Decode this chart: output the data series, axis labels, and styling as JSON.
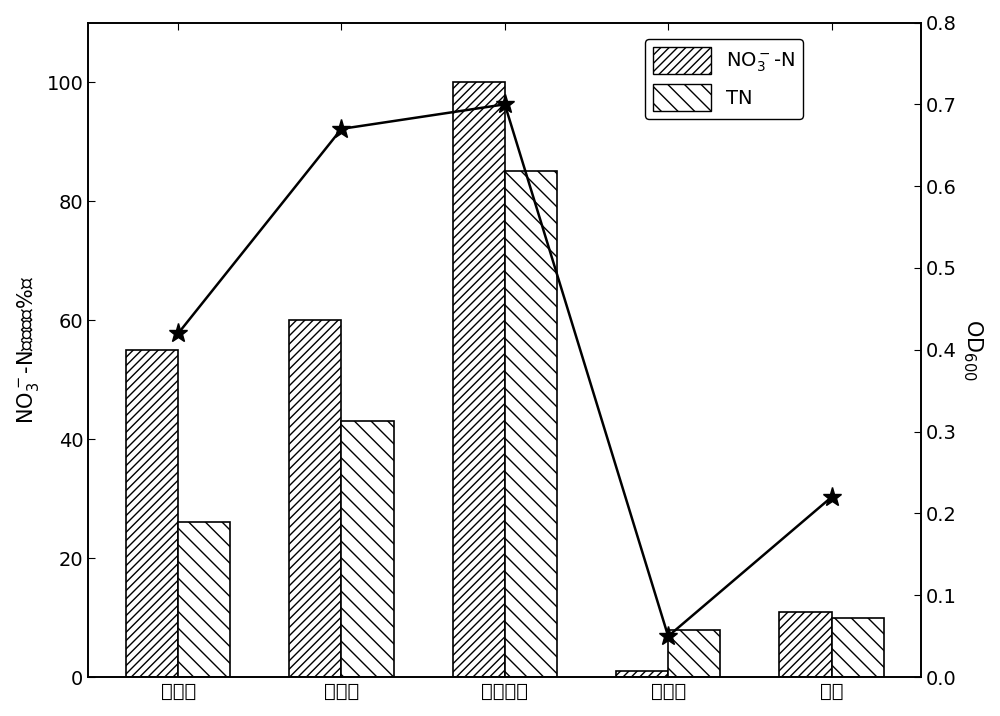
{
  "categories": [
    "乙酸钓",
    "葡葡糖",
    "丁二酸钓",
    "草酸钓",
    "乙醇"
  ],
  "no3_n_removal": [
    55,
    60,
    100,
    1,
    11
  ],
  "tn_removal": [
    26,
    43,
    85,
    8,
    10
  ],
  "od600": [
    0.42,
    0.67,
    0.7,
    0.05,
    0.22
  ],
  "ylim_left": [
    0,
    110
  ],
  "ylim_right": [
    0,
    0.8
  ],
  "bar_width": 0.32,
  "bar_color": "white",
  "bar_edgecolor": "black",
  "line_color": "black",
  "star_markersize": 14,
  "background_color": "white",
  "tick_fontsize": 14,
  "label_fontsize": 15,
  "legend_fontsize": 14,
  "yticks_left": [
    0,
    20,
    40,
    60,
    80,
    100
  ],
  "yticks_right": [
    0.0,
    0.1,
    0.2,
    0.3,
    0.4,
    0.5,
    0.6,
    0.7,
    0.8
  ]
}
